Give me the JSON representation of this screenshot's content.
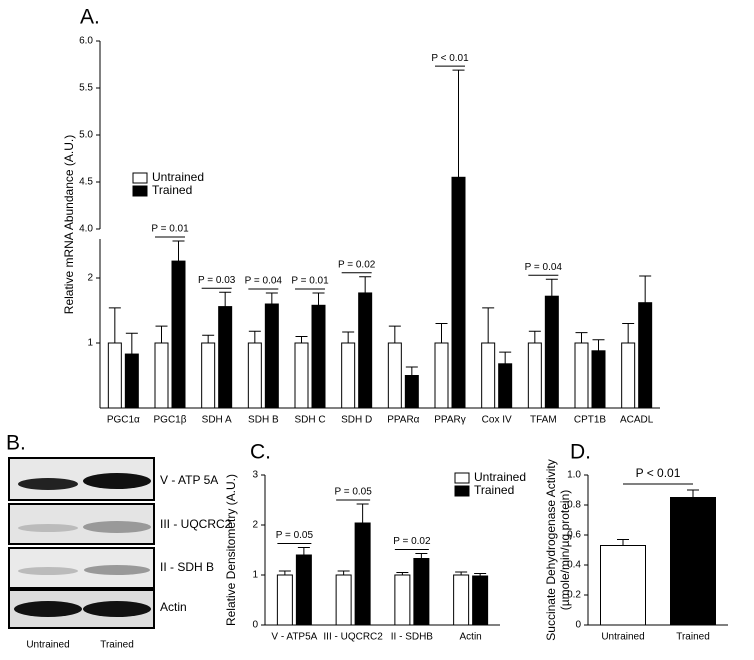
{
  "chart_data": [
    {
      "type": "bar",
      "title": "A.",
      "ylabel": "Relative mRNA Abundance (A.U.)",
      "categories": [
        "PGC1α",
        "PGC1β",
        "SDH A",
        "SDH B",
        "SDH C",
        "SDH D",
        "PPARα",
        "PPARγ",
        "Cox IV",
        "TFAM",
        "CPT1B",
        "ACADL"
      ],
      "series": [
        {
          "name": "Untrained",
          "color": "#ffffff",
          "values": [
            1,
            1,
            1,
            1,
            1,
            1,
            1,
            1,
            1,
            1,
            1,
            1
          ],
          "errors": [
            0.54,
            0.26,
            0.12,
            0.18,
            0.1,
            0.17,
            0.26,
            0.3,
            0.54,
            0.18,
            0.16,
            0.3
          ]
        },
        {
          "name": "Trained",
          "color": "#000000",
          "values": [
            0.83,
            2.26,
            1.56,
            1.6,
            1.58,
            1.77,
            0.5,
            4.55,
            0.68,
            1.72,
            0.88,
            1.62
          ],
          "errors": [
            0.32,
            0.31,
            0.22,
            0.17,
            0.19,
            0.25,
            0.13,
            1.14,
            0.18,
            0.26,
            0.17,
            0.41
          ]
        }
      ],
      "annotations": [
        null,
        "P = 0.01",
        "P = 0.03",
        "P = 0.04",
        "P = 0.01",
        "P = 0.02",
        null,
        "P < 0.01",
        null,
        "P = 0.04",
        null,
        null
      ],
      "ylim": [
        0,
        6
      ],
      "ybreak": [
        2.6,
        4
      ],
      "yticks": [
        1,
        2,
        {
          "value": 4,
          "label": "4.0"
        },
        4.5,
        {
          "value": 5,
          "label": "5.0"
        },
        5.5,
        {
          "value": 6,
          "label": "6.0"
        }
      ]
    },
    {
      "type": "bar",
      "title": "C.",
      "ylabel": "Relative Densitometry (A.U.)",
      "categories": [
        "V - ATP5A",
        "III - UQCRC2",
        "II - SDHB",
        "Actin"
      ],
      "series": [
        {
          "name": "Untrained",
          "color": "#ffffff",
          "values": [
            1,
            1,
            1,
            1
          ],
          "errors": [
            0.08,
            0.08,
            0.05,
            0.06
          ]
        },
        {
          "name": "Trained",
          "color": "#000000",
          "values": [
            1.4,
            2.04,
            1.33,
            0.98
          ],
          "errors": [
            0.15,
            0.38,
            0.1,
            0.05
          ]
        }
      ],
      "annotations": [
        "P = 0.05",
        "P = 0.05",
        "P = 0.02",
        null
      ],
      "ylim": [
        0,
        3
      ],
      "yticks": [
        0,
        1,
        2,
        3
      ]
    },
    {
      "type": "bar",
      "title": "D.",
      "ylabel": [
        "Succinate Dehydrogenase Activity",
        "(µmole/min/µg protein)"
      ],
      "categories": [
        "Untrained",
        "Trained"
      ],
      "values": [
        0.53,
        0.85
      ],
      "errors": [
        0.04,
        0.05
      ],
      "colors": [
        "#ffffff",
        "#000000"
      ],
      "annotation": "P < 0.01",
      "ylim": [
        0,
        1
      ],
      "yticks": [
        0,
        0.2,
        0.4,
        0.6,
        0.8,
        {
          "value": 1,
          "label": "1.0"
        }
      ]
    }
  ],
  "blot": {
    "title": "B.",
    "rows": [
      "V - ATP 5A",
      "III - UQCRC2",
      "II - SDH B",
      "Actin"
    ],
    "columns": [
      "Untrained",
      "Trained"
    ]
  }
}
